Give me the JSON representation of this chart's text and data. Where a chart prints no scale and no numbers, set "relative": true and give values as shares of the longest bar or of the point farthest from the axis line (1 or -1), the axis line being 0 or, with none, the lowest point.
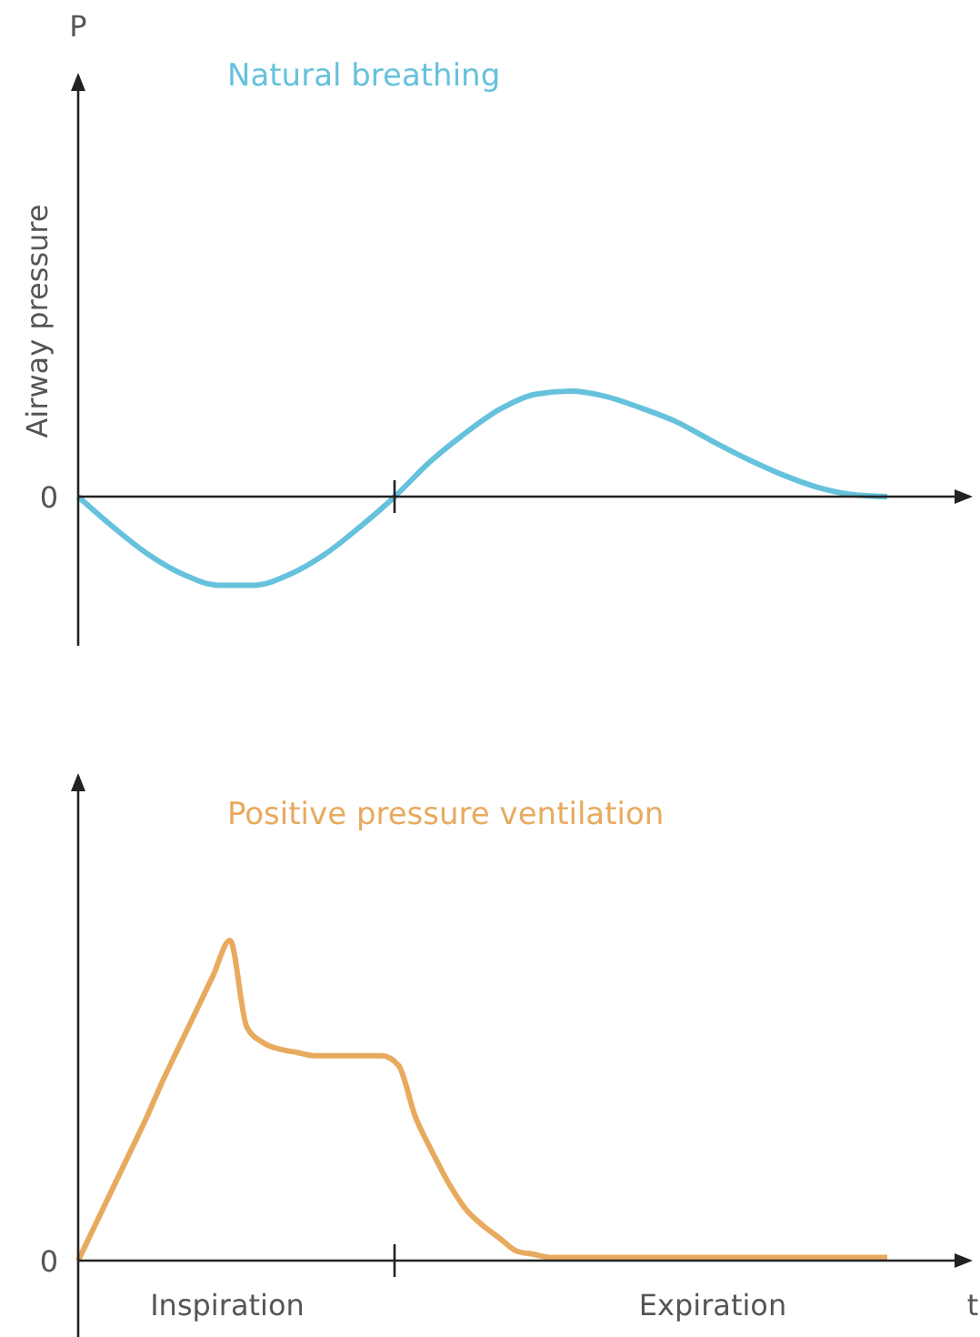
{
  "chart_data": [
    {
      "type": "line",
      "title": "Natural breathing",
      "ylabel": "Airway pressure",
      "relative": true,
      "categories": [
        null,
        null,
        null,
        null,
        null,
        null,
        null,
        null,
        null,
        null,
        null,
        null,
        null,
        null,
        null,
        null,
        null,
        null,
        null,
        null,
        null,
        null,
        null,
        null
      ],
      "series": [
        {
          "color": "#66c2dc",
          "values": [
            0,
            -0.29,
            -0.55,
            -0.74,
            -0.84,
            -0.84,
            -0.74,
            -0.55,
            -0.29,
            0,
            0.33,
            0.6,
            0.83,
            0.97,
            1,
            0.95,
            0.84,
            0.71,
            0.53,
            0.36,
            0.21,
            0.09,
            0.02,
            0
          ]
        }
      ],
      "annotations": [
        "P",
        "0"
      ]
    },
    {
      "type": "line",
      "title": "Positive pressure ventilation",
      "relative": true,
      "categories": [
        null,
        null,
        null,
        null,
        null,
        null,
        null,
        null,
        null,
        null,
        null,
        null,
        null,
        null,
        null,
        null,
        null,
        null,
        null,
        null,
        null,
        null,
        null,
        null,
        null,
        null,
        null,
        null,
        null,
        null,
        null,
        null,
        null,
        null,
        null,
        null,
        null,
        null,
        null,
        null,
        null,
        null,
        null,
        null,
        null,
        null,
        null,
        null,
        null
      ],
      "series": [
        {
          "color": "#e8aa5e",
          "values": [
            0,
            0.11,
            0.22,
            0.33,
            0.44,
            0.56,
            0.67,
            0.78,
            0.89,
            1,
            0.73,
            0.68,
            0.66,
            0.65,
            0.64,
            0.64,
            0.64,
            0.64,
            0.64,
            0.61,
            0.45,
            0.34,
            0.24,
            0.16,
            0.11,
            0.07,
            0.03,
            0.02,
            0.01,
            0.01,
            0.01,
            0.01,
            0.01,
            0.01,
            0.01,
            0.01,
            0.01,
            0.01,
            0.01,
            0.01,
            0.01,
            0.01,
            0.01,
            0.01,
            0.01,
            0.01,
            0.01,
            0.01,
            0.01
          ]
        }
      ],
      "annotations": [
        "0",
        "Inspiration",
        "Expiration",
        "t"
      ]
    }
  ]
}
